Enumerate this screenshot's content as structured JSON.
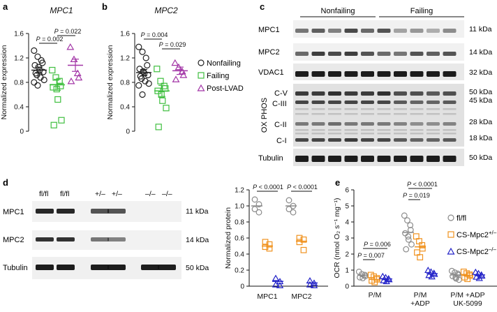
{
  "panels": {
    "a": "a",
    "b": "b",
    "c": "c",
    "d": "d",
    "e": "e"
  },
  "panel_c": {
    "group_nonfailing": "Nonfailing",
    "group_failing": "Failing",
    "rows": [
      "MPC1",
      "MPC2",
      "VDAC1",
      "C-V",
      "C-III",
      "C-II",
      "C-I",
      "Tubulin"
    ],
    "oxphos_label": "OX PHOS",
    "kda": [
      "11 kDa",
      "14 kDa",
      "32 kDa",
      "50 kDa",
      "45 kDa",
      "28 kDa",
      "18 kDa",
      "50 kDa"
    ]
  },
  "panel_d": {
    "genotypes": [
      "fl/fl",
      "fl/fl",
      "+/–",
      "+/–",
      "–/–",
      "–/–"
    ],
    "rows": [
      "MPC1",
      "MPC2",
      "Tubulin"
    ],
    "kda": [
      "11 kDa",
      "14 kDa",
      "50 kDa"
    ]
  },
  "legend_ab": [
    "Nonfailing",
    "Failing",
    "Post-LVAD"
  ],
  "legend_e": [
    "fl/fl",
    "CS-Mpc2",
    "CS-Mpc2"
  ],
  "legend_e_sup": [
    "",
    "+/–",
    "–/–"
  ],
  "colors": {
    "nonfailing": "#222222",
    "failing": "#3fbf3f",
    "post_lvad": "#a234a6",
    "flfl": "#8a8a8a",
    "het": "#f0921e",
    "ko": "#2323c8"
  },
  "chart_data": [
    {
      "id": "a",
      "type": "scatter",
      "title": "MPC1",
      "ylabel": "Normalized expression",
      "ylim": [
        0,
        1.6
      ],
      "yticks": [
        "0",
        "0.4",
        "0.8",
        "1.2",
        "1.6"
      ],
      "annotations": [
        "P = 0.002",
        "P = 0.022"
      ],
      "series": [
        {
          "name": "Nonfailing",
          "values": [
            1.32,
            1.22,
            1.16,
            1.12,
            1.08,
            1.05,
            1.0,
            0.97,
            0.95,
            0.92,
            0.88,
            0.84,
            0.8,
            0.75
          ],
          "mean": 1.0,
          "err": 0.05
        },
        {
          "name": "Failing",
          "values": [
            1.0,
            0.88,
            0.82,
            0.74,
            0.72,
            0.69,
            0.52,
            0.18,
            0.1
          ],
          "mean": 0.76,
          "err": 0.09
        },
        {
          "name": "Post-LVAD",
          "values": [
            1.38,
            1.18,
            0.95,
            0.88,
            0.82
          ],
          "mean": 1.08,
          "err": 0.1
        }
      ]
    },
    {
      "id": "b",
      "type": "scatter",
      "title": "MPC2",
      "ylabel": "Normalized expression",
      "ylim": [
        0,
        1.6
      ],
      "yticks": [
        "0",
        "0.4",
        "0.8",
        "1.2",
        "1.6"
      ],
      "annotations": [
        "P = 0.004",
        "P = 0.029"
      ],
      "series": [
        {
          "name": "Nonfailing",
          "values": [
            1.38,
            1.3,
            1.2,
            1.08,
            1.02,
            0.98,
            0.95,
            0.92,
            0.9,
            0.86,
            0.82,
            0.78,
            0.75,
            0.6
          ],
          "mean": 0.96,
          "err": 0.05
        },
        {
          "name": "Failing",
          "values": [
            1.02,
            0.82,
            0.74,
            0.7,
            0.66,
            0.6,
            0.5,
            0.38,
            0.07
          ],
          "mean": 0.66,
          "err": 0.09
        },
        {
          "name": "Post-LVAD",
          "values": [
            1.12,
            1.05,
            0.98,
            0.92,
            0.85
          ],
          "mean": 0.99,
          "err": 0.06
        }
      ]
    },
    {
      "id": "d",
      "type": "scatter",
      "ylabel": "Normalized protein",
      "ylim": [
        0,
        1.2
      ],
      "yticks": [
        "0",
        "0.2",
        "0.4",
        "0.6",
        "0.8",
        "1.0",
        "1.2"
      ],
      "categories": [
        "MPC1",
        "MPC2"
      ],
      "annotations": [
        "P < 0.0001",
        "P < 0.0001"
      ],
      "series": [
        {
          "name": "fl/fl",
          "values": [
            [
              1.08,
              1.02,
              0.96,
              0.92
            ],
            [
              1.07,
              1.0,
              0.96,
              0.92
            ]
          ],
          "mean": [
            1.0,
            1.0
          ]
        },
        {
          "name": "CS-Mpc2+/–",
          "values": [
            [
              0.55,
              0.52,
              0.49,
              0.47
            ],
            [
              0.6,
              0.58,
              0.55,
              0.45
            ]
          ],
          "mean": [
            0.5,
            0.56
          ]
        },
        {
          "name": "CS-Mpc2–/–",
          "values": [
            [
              0.1,
              0.06,
              0.02,
              0.01
            ],
            [
              0.07,
              0.04,
              0.02,
              0.01
            ]
          ],
          "mean": [
            0.06,
            0.04
          ]
        }
      ]
    },
    {
      "id": "e",
      "type": "scatter",
      "ylabel": "OCR (nmol O₂ s⁻¹ mg⁻¹)",
      "ylim": [
        0,
        6
      ],
      "yticks": [
        "0",
        "1",
        "2",
        "3",
        "4",
        "5",
        "6"
      ],
      "categories": [
        "P/M",
        "P/M\n+ADP",
        "P/M +ADP\nUK-5099"
      ],
      "annotations": [
        "P = 0.006",
        "P = 0.007",
        "P < 0.0001",
        "P = 0.019"
      ],
      "series": [
        {
          "name": "fl/fl",
          "values": [
            [
              0.9,
              0.75,
              0.7,
              0.62,
              0.55,
              0.5
            ],
            [
              4.4,
              4.1,
              3.8,
              3.5,
              3.3,
              3.1,
              2.9,
              2.6,
              2.3
            ],
            [
              0.95,
              0.85,
              0.78,
              0.7,
              0.62,
              0.55,
              0.48,
              0.4
            ]
          ],
          "mean": [
            0.68,
            3.35,
            0.7
          ]
        },
        {
          "name": "CS-Mpc2+/–",
          "values": [
            [
              0.7,
              0.6,
              0.5,
              0.42,
              0.35,
              0.25
            ],
            [
              3.1,
              2.8,
              2.55,
              2.35,
              2.1,
              1.8
            ],
            [
              0.9,
              0.8,
              0.72,
              0.65,
              0.55,
              0.45
            ]
          ],
          "mean": [
            0.42,
            2.45,
            0.68
          ]
        },
        {
          "name": "CS-Mpc2–/–",
          "values": [
            [
              0.62,
              0.55,
              0.48,
              0.42,
              0.36,
              0.3
            ],
            [
              1.0,
              0.9,
              0.82,
              0.75,
              0.68,
              0.6
            ],
            [
              0.88,
              0.8,
              0.72,
              0.65,
              0.58,
              0.5
            ]
          ],
          "mean": [
            0.45,
            0.78,
            0.7
          ]
        }
      ]
    }
  ]
}
